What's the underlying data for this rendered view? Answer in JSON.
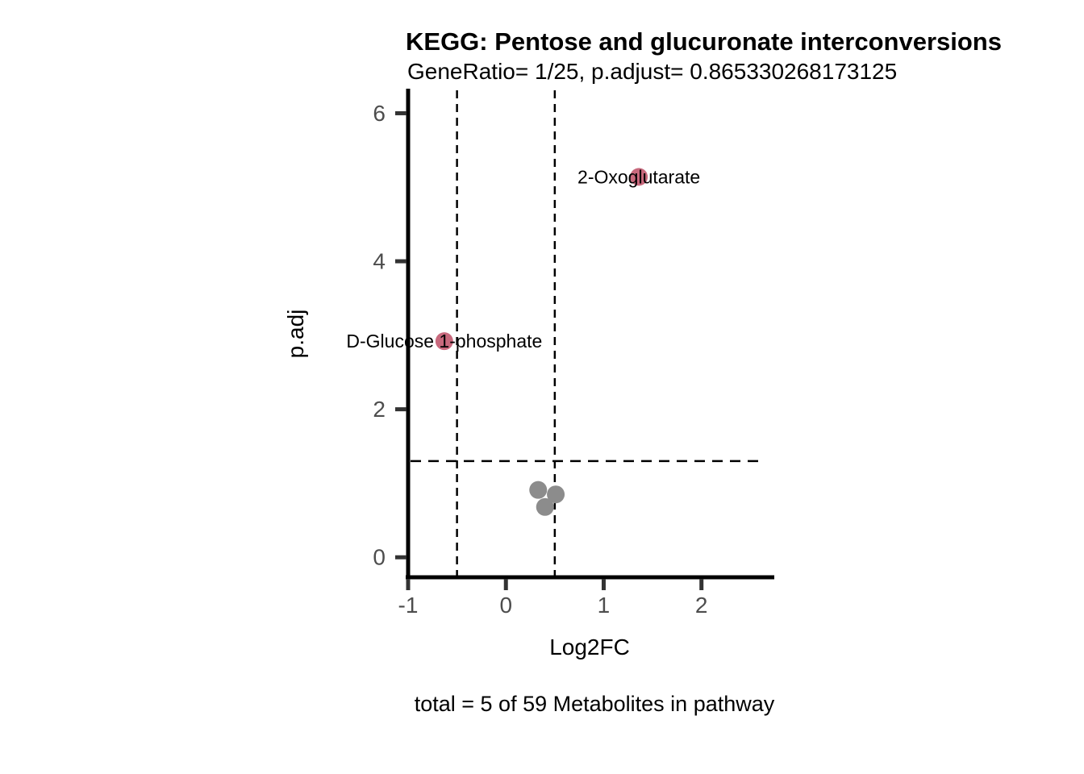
{
  "colors": {
    "background": "#ffffff",
    "axis_line": "#000000",
    "tick_mark": "#333333",
    "tick_label": "#4d4d4d",
    "threshold_line": "#000000",
    "significant_point": "#c8697d",
    "nonsignificant_point": "#8c8c8c",
    "label_text": "#000000"
  },
  "chart_data": {
    "type": "scatter",
    "title": "KEGG: Pentose and glucuronate interconversions",
    "subtitle": "GeneRatio= 1/25, p.adjust= 0.865330268173125",
    "xlabel": "Log2FC",
    "ylabel": "p.adj",
    "caption": "total = 5 of 59 Metabolites in pathway",
    "xlim": [
      -1.0,
      2.72
    ],
    "ylim": [
      -0.27,
      6.31
    ],
    "x_ticks": [
      -1,
      0,
      1,
      2
    ],
    "y_ticks": [
      0,
      2,
      4,
      6
    ],
    "grid": false,
    "legend": "none",
    "reference_lines": {
      "vlines": [
        -0.5,
        0.5
      ],
      "hlines": [
        1.3
      ],
      "style": "dashed"
    },
    "series": [
      {
        "name": "significant",
        "color": "#c8697d",
        "points": [
          {
            "label": "2-Oxoglutarate",
            "x": 1.36,
            "y": 5.14
          },
          {
            "label": "D-Glucose 1-phosphate",
            "x": -0.63,
            "y": 2.92
          }
        ]
      },
      {
        "name": "not-significant",
        "color": "#8c8c8c",
        "points": [
          {
            "label": "",
            "x": 0.33,
            "y": 0.91
          },
          {
            "label": "",
            "x": 0.51,
            "y": 0.85
          },
          {
            "label": "",
            "x": 0.4,
            "y": 0.68
          }
        ]
      }
    ]
  }
}
